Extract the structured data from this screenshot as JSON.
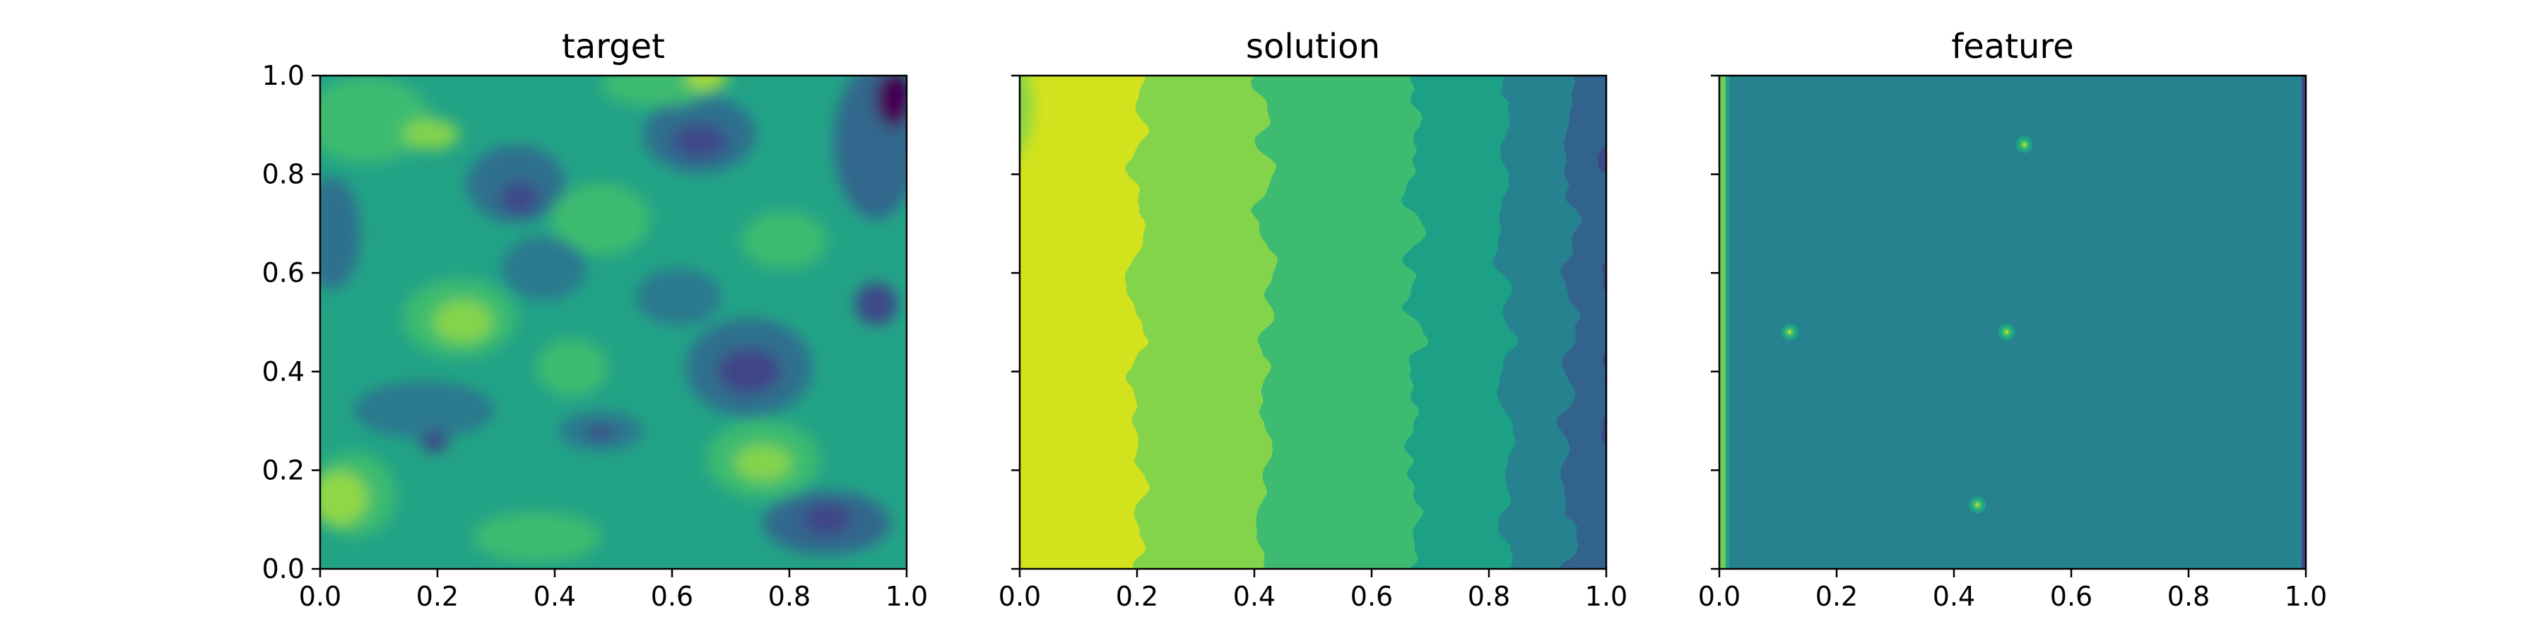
{
  "chart_data": [
    {
      "type": "heatmap",
      "title": "target",
      "xlim": [
        0.0,
        1.0
      ],
      "ylim": [
        0.0,
        1.0
      ],
      "xticks": [
        "0.0",
        "0.2",
        "0.4",
        "0.6",
        "0.8",
        "1.0"
      ],
      "yticks": [
        "0.0",
        "0.2",
        "0.4",
        "0.6",
        "0.8",
        "1.0"
      ],
      "show_yticklabels": true,
      "colormap": "viridis",
      "style": "filled-contour, noisy blobs, mostly green and teal with darker blue-purple patches toward the right edge"
    },
    {
      "type": "heatmap",
      "title": "solution",
      "xlim": [
        0.0,
        1.0
      ],
      "ylim": [
        0.0,
        1.0
      ],
      "xticks": [
        "0.0",
        "0.2",
        "0.4",
        "0.6",
        "0.8",
        "1.0"
      ],
      "yticks": [
        "0.0",
        "0.2",
        "0.4",
        "0.6",
        "0.8",
        "1.0"
      ],
      "show_yticklabels": false,
      "colormap": "viridis",
      "style": "filled-contour, vertical bands decreasing from yellow on the left to dark purple on the right"
    },
    {
      "type": "heatmap",
      "title": "feature",
      "xlim": [
        0.0,
        1.0
      ],
      "ylim": [
        0.0,
        1.0
      ],
      "xticks": [
        "0.0",
        "0.2",
        "0.4",
        "0.6",
        "0.8",
        "1.0"
      ],
      "yticks": [
        "0.0",
        "0.2",
        "0.4",
        "0.6",
        "0.8",
        "1.0"
      ],
      "show_yticklabels": false,
      "colormap": "viridis",
      "background_color": "#26828e",
      "spots": [
        [
          0.52,
          0.86
        ],
        [
          0.12,
          0.48
        ],
        [
          0.49,
          0.48
        ],
        [
          0.44,
          0.13
        ]
      ],
      "style": "uniform teal field with a thin green strip at the left edge and a few small bright point features"
    }
  ]
}
